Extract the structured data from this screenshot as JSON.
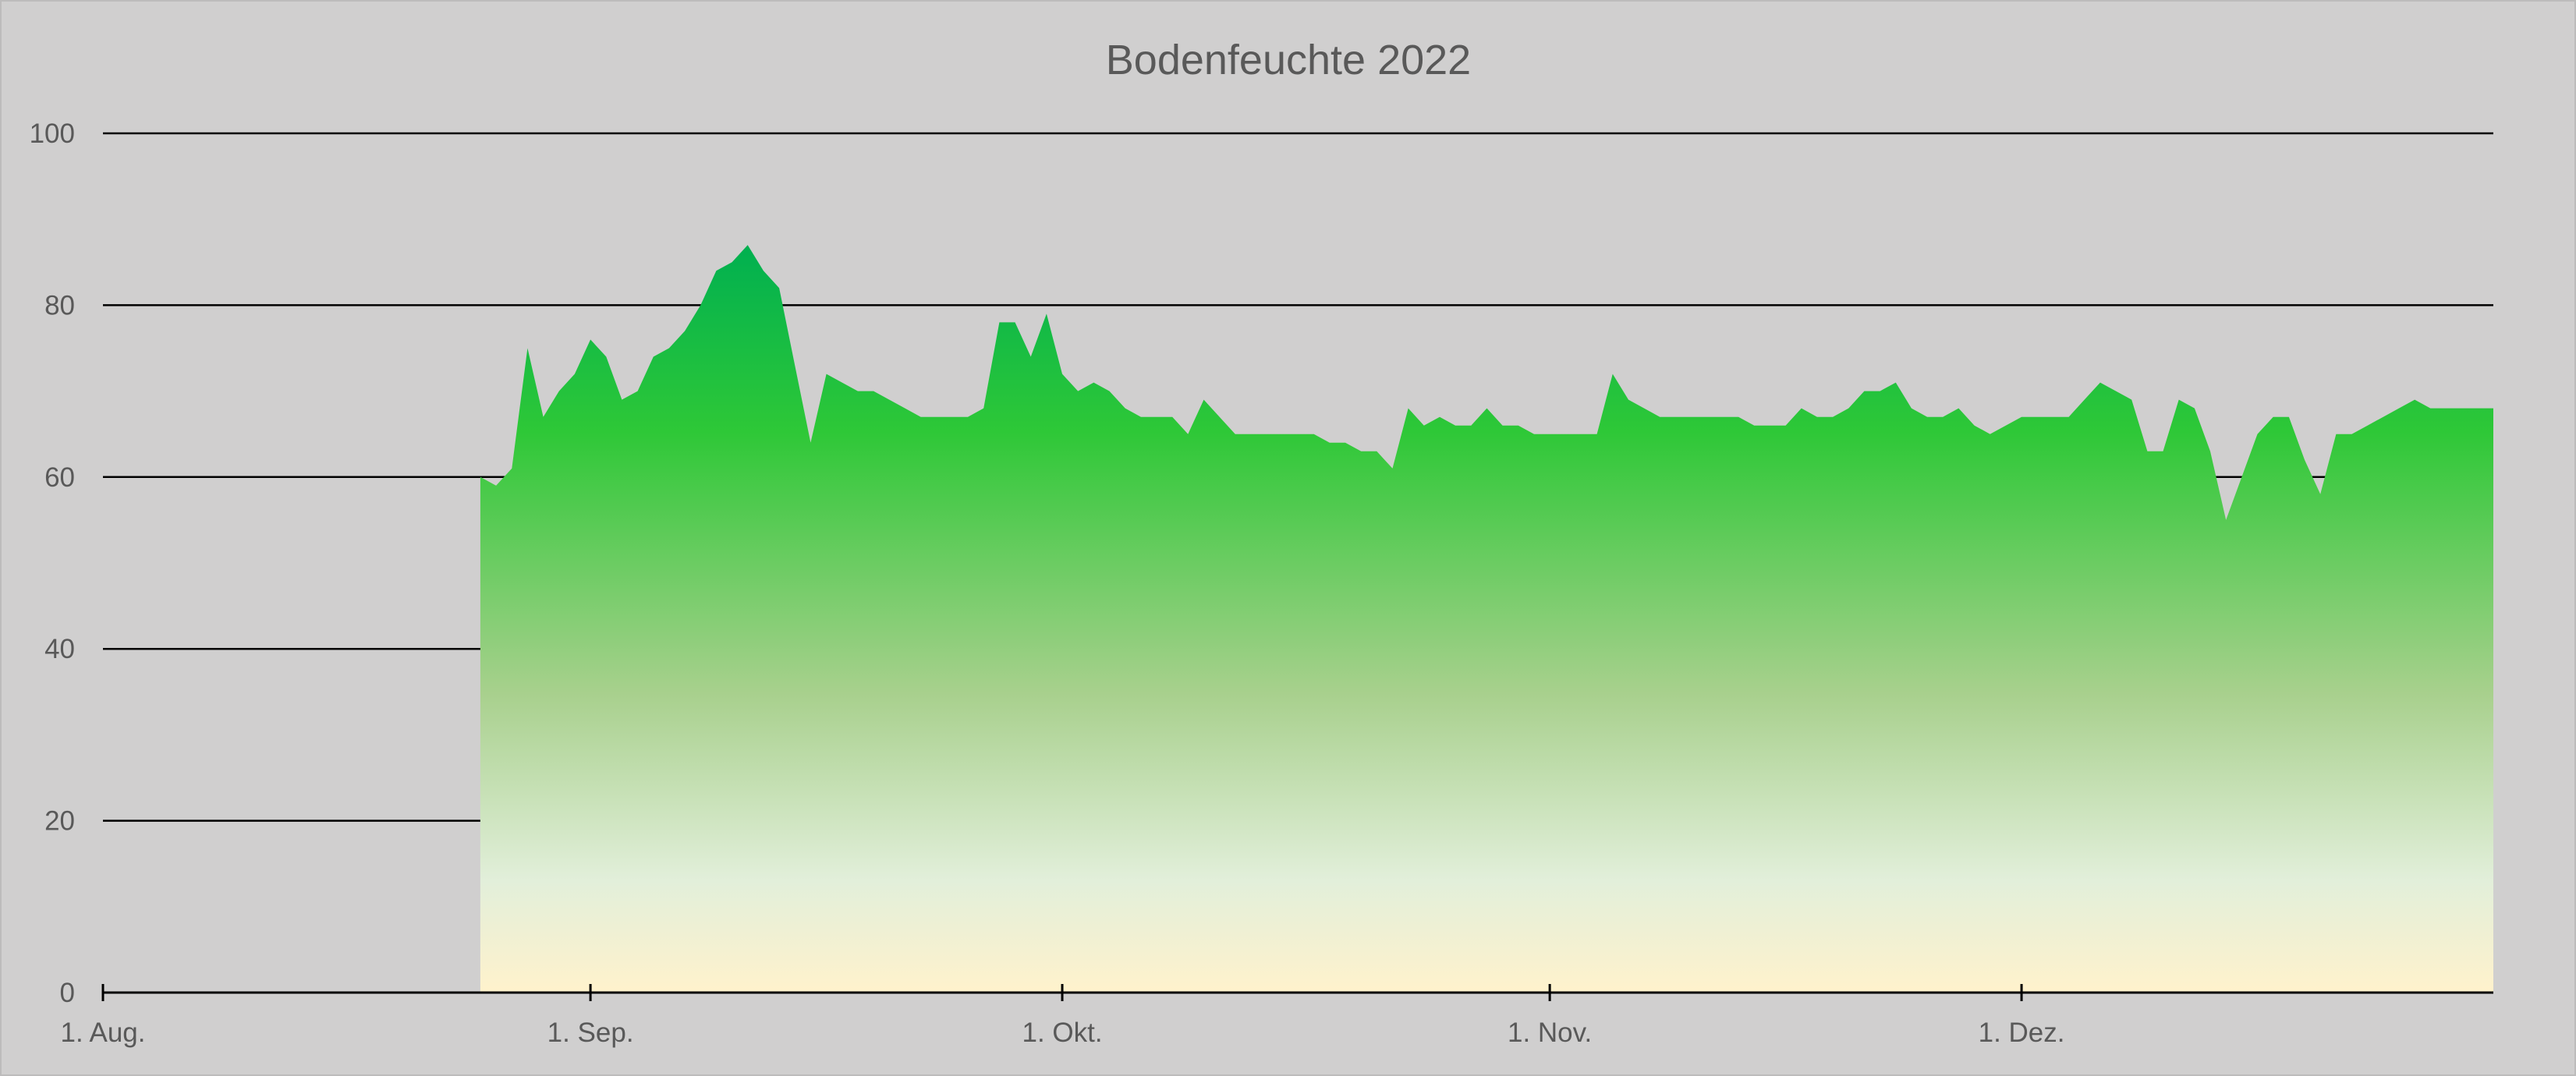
{
  "chart_data": {
    "type": "area",
    "title": "Bodenfeuchte 2022",
    "xlabel": "",
    "ylabel": "",
    "ylim": [
      0,
      100
    ],
    "yticks": [
      0,
      20,
      40,
      60,
      80,
      100
    ],
    "grid": true,
    "legend": "none",
    "x_ticks": [
      {
        "date": "2022-08-01",
        "label": "1. Aug."
      },
      {
        "date": "2022-09-01",
        "label": "1. Sep."
      },
      {
        "date": "2022-10-01",
        "label": "1. Okt."
      },
      {
        "date": "2022-11-01",
        "label": "1. Nov."
      },
      {
        "date": "2022-12-01",
        "label": "1. Dez."
      }
    ],
    "xlim": [
      "2022-08-01",
      "2022-12-31"
    ],
    "fill_gradient": {
      "top": "#00b050",
      "upper": "#2ec837",
      "middle": "#a8d08d",
      "low": "#e2efda",
      "bottom": "#fff2cc"
    },
    "series": [
      {
        "x": [
          "2022-08-25",
          "2022-08-26",
          "2022-08-27",
          "2022-08-28",
          "2022-08-29",
          "2022-08-30",
          "2022-08-31",
          "2022-09-01",
          "2022-09-02",
          "2022-09-03",
          "2022-09-04",
          "2022-09-05",
          "2022-09-06",
          "2022-09-07",
          "2022-09-08",
          "2022-09-09",
          "2022-09-10",
          "2022-09-11",
          "2022-09-12",
          "2022-09-13",
          "2022-09-14",
          "2022-09-15",
          "2022-09-16",
          "2022-09-17",
          "2022-09-18",
          "2022-09-19",
          "2022-09-20",
          "2022-09-21",
          "2022-09-22",
          "2022-09-23",
          "2022-09-24",
          "2022-09-25",
          "2022-09-26",
          "2022-09-27",
          "2022-09-28",
          "2022-09-29",
          "2022-09-30",
          "2022-10-01",
          "2022-10-02",
          "2022-10-03",
          "2022-10-04",
          "2022-10-05",
          "2022-10-06",
          "2022-10-07",
          "2022-10-08",
          "2022-10-09",
          "2022-10-10",
          "2022-10-11",
          "2022-10-12",
          "2022-10-13",
          "2022-10-14",
          "2022-10-15",
          "2022-10-16",
          "2022-10-17",
          "2022-10-18",
          "2022-10-19",
          "2022-10-20",
          "2022-10-21",
          "2022-10-22",
          "2022-10-23",
          "2022-10-24",
          "2022-10-25",
          "2022-10-26",
          "2022-10-27",
          "2022-10-28",
          "2022-10-29",
          "2022-10-30",
          "2022-10-31",
          "2022-11-01",
          "2022-11-02",
          "2022-11-03",
          "2022-11-04",
          "2022-11-05",
          "2022-11-06",
          "2022-11-07",
          "2022-11-08",
          "2022-11-09",
          "2022-11-10",
          "2022-11-11",
          "2022-11-12",
          "2022-11-13",
          "2022-11-14",
          "2022-11-15",
          "2022-11-16",
          "2022-11-17",
          "2022-11-18",
          "2022-11-19",
          "2022-11-20",
          "2022-11-21",
          "2022-11-22",
          "2022-11-23",
          "2022-11-24",
          "2022-11-25",
          "2022-11-26",
          "2022-11-27",
          "2022-11-28",
          "2022-11-29",
          "2022-11-30",
          "2022-12-01",
          "2022-12-02",
          "2022-12-03",
          "2022-12-04",
          "2022-12-05",
          "2022-12-06",
          "2022-12-07",
          "2022-12-08",
          "2022-12-09",
          "2022-12-10",
          "2022-12-11",
          "2022-12-12",
          "2022-12-13",
          "2022-12-14",
          "2022-12-15",
          "2022-12-16",
          "2022-12-17",
          "2022-12-18",
          "2022-12-19",
          "2022-12-20",
          "2022-12-21",
          "2022-12-22",
          "2022-12-23",
          "2022-12-24",
          "2022-12-25",
          "2022-12-26",
          "2022-12-27",
          "2022-12-28",
          "2022-12-29",
          "2022-12-30",
          "2022-12-31"
        ],
        "values": [
          60,
          59,
          61,
          75,
          67,
          70,
          72,
          76,
          74,
          69,
          70,
          74,
          75,
          77,
          80,
          84,
          85,
          87,
          84,
          82,
          73,
          64,
          72,
          71,
          70,
          70,
          69,
          68,
          67,
          67,
          67,
          67,
          68,
          78,
          78,
          74,
          79,
          72,
          70,
          71,
          70,
          68,
          67,
          67,
          67,
          65,
          69,
          67,
          65,
          65,
          65,
          65,
          65,
          65,
          64,
          64,
          63,
          63,
          61,
          68,
          66,
          67,
          66,
          66,
          68,
          66,
          66,
          65,
          65,
          65,
          65,
          65,
          72,
          69,
          68,
          67,
          67,
          67,
          67,
          67,
          67,
          66,
          66,
          66,
          68,
          67,
          67,
          68,
          70,
          70,
          71,
          68,
          67,
          67,
          68,
          66,
          65,
          66,
          67,
          67,
          67,
          67,
          69,
          71,
          70,
          69,
          63,
          63,
          69,
          68,
          63,
          55,
          60,
          65,
          67,
          67,
          62,
          58,
          65,
          65,
          66,
          67,
          68,
          69,
          68,
          68,
          68,
          68,
          68
        ]
      }
    ]
  }
}
